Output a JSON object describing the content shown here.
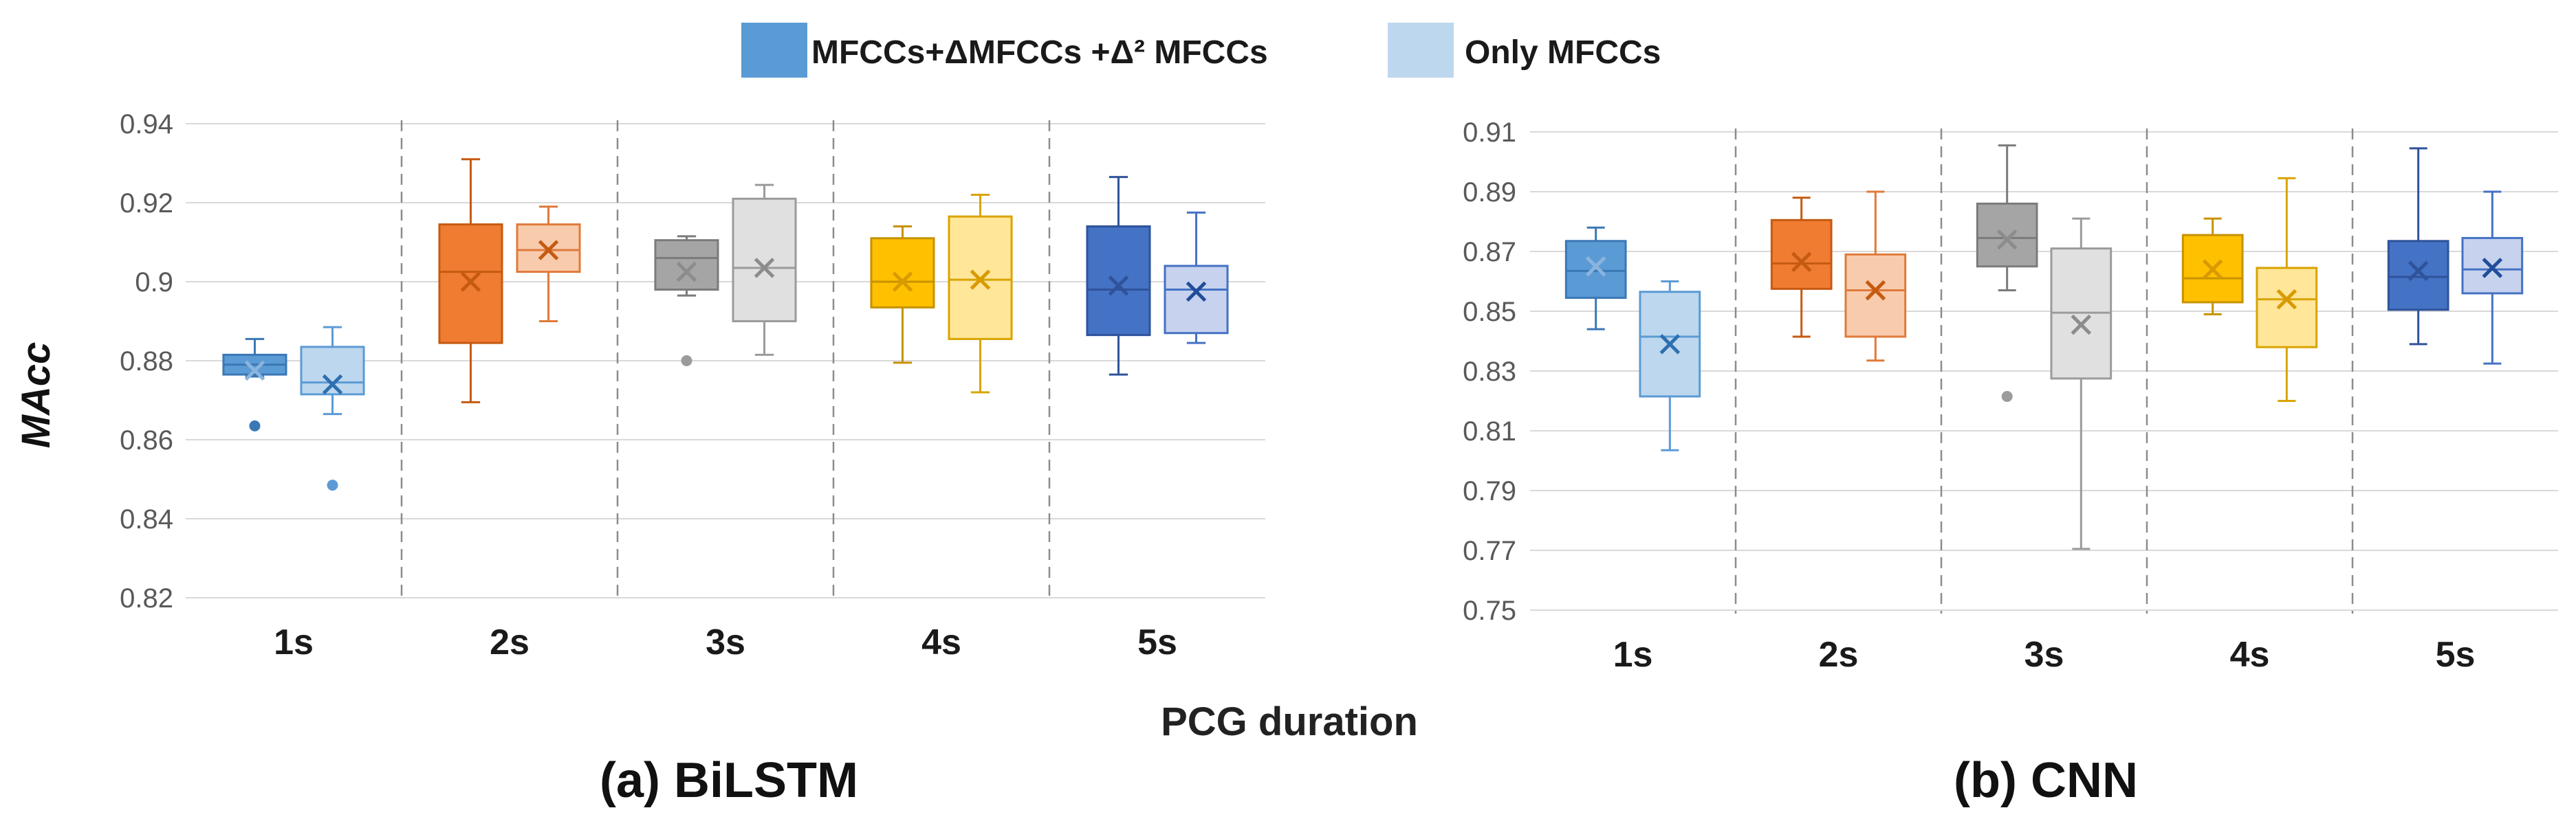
{
  "legend": {
    "series_a": "MFCCs+ΔMFCCs +Δ² MFCCs",
    "series_b": "Only MFCCs"
  },
  "shared_xlabel": "PCG duration",
  "chart_data": [
    {
      "type": "boxplot",
      "title": "(a) BiLSTM",
      "ylabel": "MAcc",
      "xlabel": "PCG duration",
      "ylim": [
        0.82,
        0.94
      ],
      "yticks": [
        "0.82",
        "0.84",
        "0.86",
        "0.88",
        "0.9",
        "0.92",
        "0.94"
      ],
      "categories": [
        "1s",
        "2s",
        "3s",
        "4s",
        "5s"
      ],
      "series": [
        {
          "name": "MFCCs+ΔMFCCs +Δ² MFCCs",
          "boxes": [
            {
              "min": 0.876,
              "q1": 0.8765,
              "median": 0.879,
              "q3": 0.8815,
              "max": 0.8855,
              "mean": 0.8775,
              "outliers": [
                0.8635
              ]
            },
            {
              "min": 0.8695,
              "q1": 0.8845,
              "median": 0.9025,
              "q3": 0.9145,
              "max": 0.931,
              "mean": 0.9,
              "outliers": []
            },
            {
              "min": 0.8965,
              "q1": 0.898,
              "median": 0.906,
              "q3": 0.9105,
              "max": 0.9115,
              "mean": 0.9025,
              "outliers": [
                0.88
              ]
            },
            {
              "min": 0.8795,
              "q1": 0.8935,
              "median": 0.9,
              "q3": 0.911,
              "max": 0.914,
              "mean": 0.9,
              "outliers": []
            },
            {
              "min": 0.8765,
              "q1": 0.8865,
              "median": 0.898,
              "q3": 0.914,
              "max": 0.9265,
              "mean": 0.899,
              "outliers": []
            }
          ]
        },
        {
          "name": "Only MFCCs",
          "boxes": [
            {
              "min": 0.8665,
              "q1": 0.8715,
              "median": 0.8745,
              "q3": 0.8835,
              "max": 0.8885,
              "mean": 0.874,
              "outliers": [
                0.8485
              ]
            },
            {
              "min": 0.89,
              "q1": 0.9025,
              "median": 0.908,
              "q3": 0.9145,
              "max": 0.919,
              "mean": 0.908,
              "outliers": []
            },
            {
              "min": 0.8815,
              "q1": 0.89,
              "median": 0.9035,
              "q3": 0.921,
              "max": 0.9245,
              "mean": 0.9035,
              "outliers": []
            },
            {
              "min": 0.872,
              "q1": 0.8855,
              "median": 0.9005,
              "q3": 0.9165,
              "max": 0.922,
              "mean": 0.9005,
              "outliers": []
            },
            {
              "min": 0.8845,
              "q1": 0.887,
              "median": 0.898,
              "q3": 0.904,
              "max": 0.9175,
              "mean": 0.8975,
              "outliers": []
            }
          ]
        }
      ]
    },
    {
      "type": "boxplot",
      "title": "(b) CNN",
      "ylabel": "",
      "xlabel": "PCG duration",
      "ylim": [
        0.75,
        0.91
      ],
      "yticks": [
        "0.75",
        "0.77",
        "0.79",
        "0.81",
        "0.83",
        "0.85",
        "0.87",
        "0.89",
        "0.91"
      ],
      "categories": [
        "1s",
        "2s",
        "3s",
        "4s",
        "5s"
      ],
      "series": [
        {
          "name": "MFCCs+ΔMFCCs +Δ² MFCCs",
          "boxes": [
            {
              "min": 0.844,
              "q1": 0.8545,
              "median": 0.8635,
              "q3": 0.8735,
              "max": 0.878,
              "mean": 0.865,
              "outliers": []
            },
            {
              "min": 0.8415,
              "q1": 0.8575,
              "median": 0.866,
              "q3": 0.8805,
              "max": 0.888,
              "mean": 0.8665,
              "outliers": []
            },
            {
              "min": 0.857,
              "q1": 0.865,
              "median": 0.8745,
              "q3": 0.886,
              "max": 0.9055,
              "mean": 0.874,
              "outliers": [
                0.8215
              ]
            },
            {
              "min": 0.849,
              "q1": 0.853,
              "median": 0.861,
              "q3": 0.8755,
              "max": 0.881,
              "mean": 0.864,
              "outliers": []
            },
            {
              "min": 0.839,
              "q1": 0.8505,
              "median": 0.8615,
              "q3": 0.8735,
              "max": 0.9045,
              "mean": 0.8635,
              "outliers": []
            }
          ]
        },
        {
          "name": "Only MFCCs",
          "boxes": [
            {
              "min": 0.8035,
              "q1": 0.8215,
              "median": 0.8415,
              "q3": 0.8565,
              "max": 0.86,
              "mean": 0.839,
              "outliers": []
            },
            {
              "min": 0.8335,
              "q1": 0.8415,
              "median": 0.857,
              "q3": 0.869,
              "max": 0.89,
              "mean": 0.857,
              "outliers": []
            },
            {
              "min": 0.7705,
              "q1": 0.8275,
              "median": 0.8495,
              "q3": 0.871,
              "max": 0.881,
              "mean": 0.8455,
              "outliers": []
            },
            {
              "min": 0.82,
              "q1": 0.838,
              "median": 0.854,
              "q3": 0.8645,
              "max": 0.8945,
              "mean": 0.854,
              "outliers": []
            },
            {
              "min": 0.8325,
              "q1": 0.856,
              "median": 0.864,
              "q3": 0.8745,
              "max": 0.89,
              "mean": 0.8645,
              "outliers": []
            }
          ]
        }
      ]
    }
  ]
}
